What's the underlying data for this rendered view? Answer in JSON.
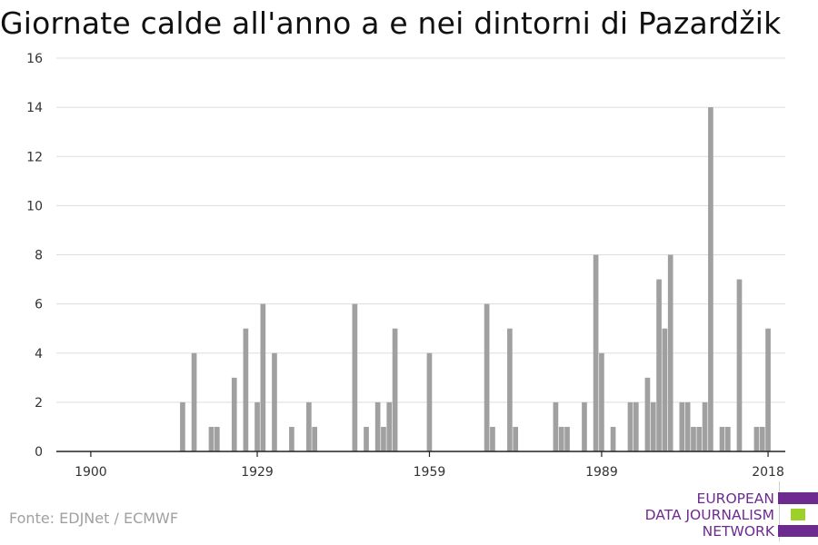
{
  "title": "Giornate calde all'anno a e nei dintorni di Pazardžik",
  "source": "Fonte: EDJNet / ECMWF",
  "logo": {
    "line1": "EUROPEAN",
    "line2": "DATA JOURNALISM",
    "line3": "NETWORK",
    "colors": [
      "#6d2b8f",
      "#9ed02b",
      "#6d2b8f"
    ]
  },
  "chart_data": {
    "type": "bar",
    "title": "Giornate calde all'anno a e nei dintorni di Pazardžik",
    "xlabel": "",
    "ylabel": "",
    "xlim": [
      1894,
      2021
    ],
    "ylim": [
      0,
      16
    ],
    "yticks": [
      0,
      2,
      4,
      6,
      8,
      10,
      12,
      14,
      16
    ],
    "xticks": [
      "1900",
      "1929",
      "1959",
      "1989",
      "2018"
    ],
    "xtick_values": [
      1900,
      1929,
      1959,
      1989,
      2018
    ],
    "grid": true,
    "bar_color": "#a0a0a0",
    "x": [
      1900,
      1901,
      1902,
      1903,
      1904,
      1905,
      1906,
      1907,
      1908,
      1909,
      1910,
      1911,
      1912,
      1913,
      1914,
      1915,
      1916,
      1917,
      1918,
      1919,
      1920,
      1921,
      1922,
      1923,
      1924,
      1925,
      1926,
      1927,
      1928,
      1929,
      1930,
      1931,
      1932,
      1933,
      1934,
      1935,
      1936,
      1937,
      1938,
      1939,
      1940,
      1941,
      1942,
      1943,
      1944,
      1945,
      1946,
      1947,
      1948,
      1949,
      1950,
      1951,
      1952,
      1953,
      1954,
      1955,
      1956,
      1957,
      1958,
      1959,
      1960,
      1961,
      1962,
      1963,
      1964,
      1965,
      1966,
      1967,
      1968,
      1969,
      1970,
      1971,
      1972,
      1973,
      1974,
      1975,
      1976,
      1977,
      1978,
      1979,
      1980,
      1981,
      1982,
      1983,
      1984,
      1985,
      1986,
      1987,
      1988,
      1989,
      1990,
      1991,
      1992,
      1993,
      1994,
      1995,
      1996,
      1997,
      1998,
      1999,
      2000,
      2001,
      2002,
      2003,
      2004,
      2005,
      2006,
      2007,
      2008,
      2009,
      2010,
      2011,
      2012,
      2013,
      2014,
      2015,
      2016,
      2017,
      2018
    ],
    "values": [
      0,
      0,
      0,
      0,
      0,
      0,
      0,
      0,
      0,
      0,
      0,
      0,
      0,
      0,
      0,
      0,
      2,
      0,
      4,
      0,
      0,
      1,
      1,
      0,
      0,
      3,
      0,
      5,
      0,
      2,
      6,
      0,
      4,
      0,
      0,
      1,
      0,
      0,
      2,
      1,
      0,
      0,
      0,
      0,
      0,
      0,
      6,
      0,
      1,
      0,
      2,
      1,
      2,
      5,
      0,
      0,
      0,
      0,
      0,
      4,
      0,
      0,
      0,
      0,
      0,
      0,
      0,
      0,
      0,
      6,
      1,
      0,
      0,
      5,
      1,
      0,
      0,
      0,
      0,
      0,
      0,
      2,
      1,
      1,
      0,
      0,
      2,
      0,
      8,
      4,
      0,
      1,
      0,
      0,
      2,
      2,
      0,
      3,
      2,
      7,
      5,
      8,
      0,
      2,
      2,
      1,
      1,
      2,
      14,
      0,
      1,
      1,
      0,
      7,
      0,
      0,
      1,
      1,
      5
    ]
  }
}
